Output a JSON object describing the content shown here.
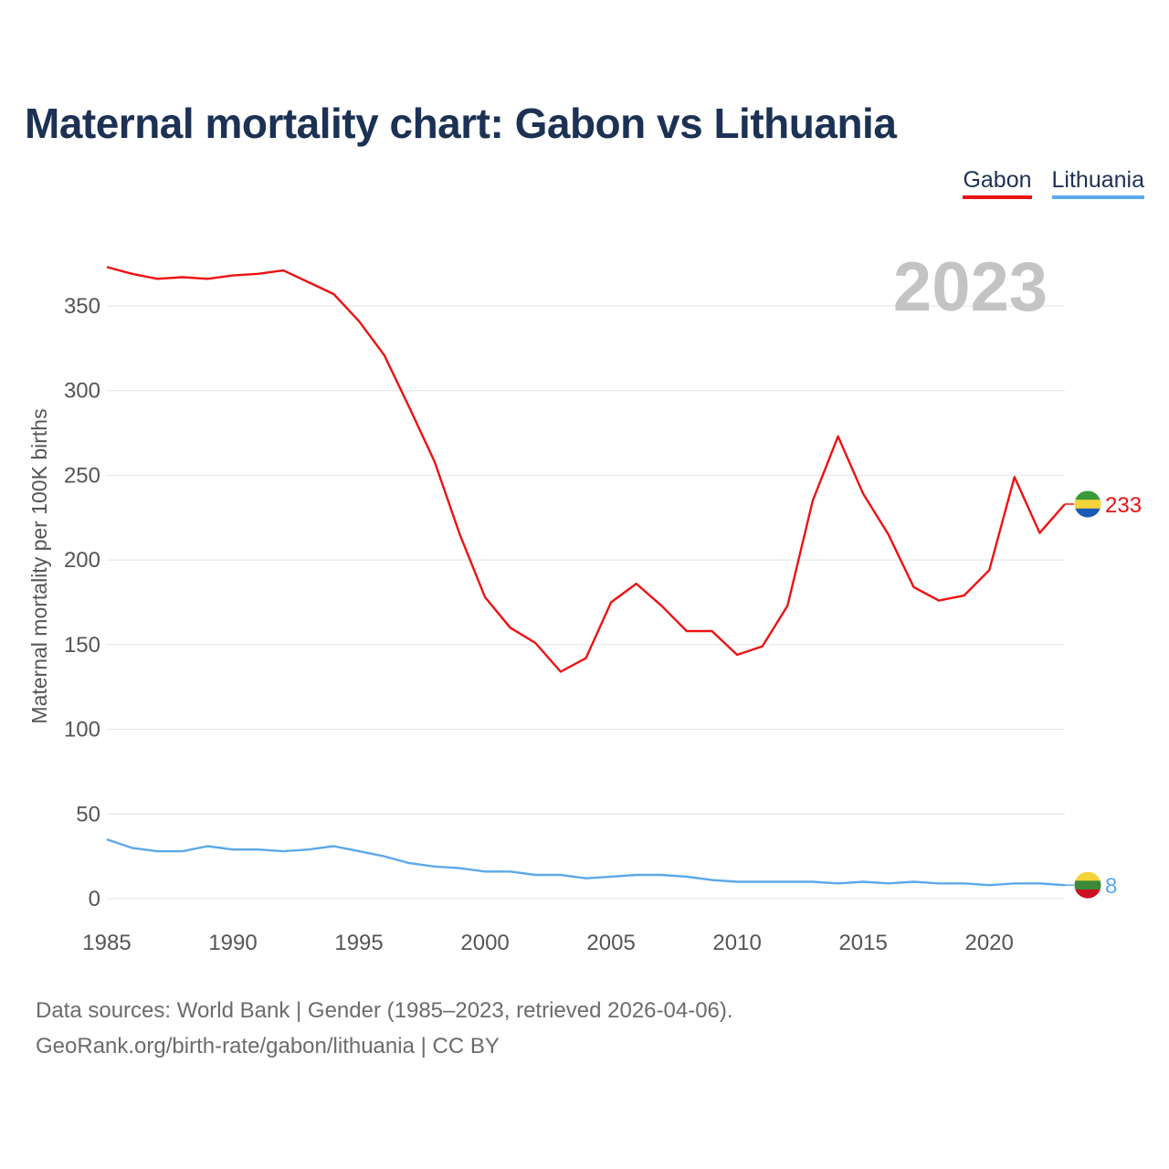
{
  "title": "Maternal mortality chart: Gabon vs Lithuania",
  "legend": [
    {
      "name": "Gabon",
      "color": "#ee1111"
    },
    {
      "name": "Lithuania",
      "color": "#5ba8ea"
    }
  ],
  "year_label": "2023",
  "chart_data": {
    "type": "line",
    "title": "Maternal mortality chart: Gabon vs Lithuania",
    "xlabel": "",
    "ylabel": "Maternal mortality per 100K births",
    "xlim": [
      1985,
      2023
    ],
    "ylim": [
      0,
      380
    ],
    "x_ticks": [
      1985,
      1990,
      1995,
      2000,
      2005,
      2010,
      2015,
      2020
    ],
    "y_ticks": [
      0,
      50,
      100,
      150,
      200,
      250,
      300,
      350
    ],
    "grid": true,
    "legend_position": "top-right",
    "x": [
      1985,
      1986,
      1987,
      1988,
      1989,
      1990,
      1991,
      1992,
      1993,
      1994,
      1995,
      1996,
      1997,
      1998,
      1999,
      2000,
      2001,
      2002,
      2003,
      2004,
      2005,
      2006,
      2007,
      2008,
      2009,
      2010,
      2011,
      2012,
      2013,
      2014,
      2015,
      2016,
      2017,
      2018,
      2019,
      2020,
      2021,
      2022,
      2023
    ],
    "series": [
      {
        "name": "Gabon",
        "color": "#ee1111",
        "end_label": "233",
        "values": [
          373,
          369,
          366,
          367,
          366,
          368,
          369,
          371,
          364,
          357,
          341,
          321,
          290,
          258,
          215,
          178,
          160,
          151,
          134,
          142,
          175,
          186,
          173,
          158,
          158,
          144,
          149,
          173,
          235,
          273,
          239,
          215,
          184,
          176,
          179,
          194,
          249,
          216,
          233
        ]
      },
      {
        "name": "Lithuania",
        "color": "#5ba8ea",
        "end_label": "8",
        "values": [
          35,
          30,
          28,
          28,
          31,
          29,
          29,
          28,
          29,
          31,
          28,
          25,
          21,
          19,
          18,
          16,
          16,
          14,
          14,
          12,
          13,
          14,
          14,
          13,
          11,
          10,
          10,
          10,
          10,
          9,
          10,
          9,
          10,
          9,
          9,
          8,
          9,
          9,
          8
        ]
      }
    ]
  },
  "sources": {
    "line1": "Data sources: World Bank | Gender (1985–2023, retrieved 2026-04-06).",
    "line2": "GeoRank.org/birth-rate/gabon/lithuania | CC BY"
  }
}
